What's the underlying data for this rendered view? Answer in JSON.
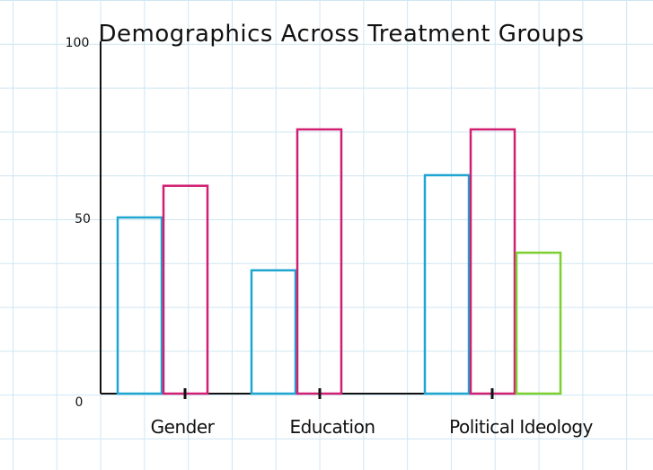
{
  "chart_data": {
    "type": "bar",
    "title": "Demographics Across Treatment Groups",
    "xlabel": "",
    "ylabel": "",
    "ylim": [
      0,
      100
    ],
    "yticks": [
      "0",
      "50",
      "100"
    ],
    "categories": [
      "Gender",
      "Education",
      "Political Ideology"
    ],
    "series": [
      {
        "color": "#1ea6d1",
        "values": [
          50,
          35,
          62
        ]
      },
      {
        "color": "#d01f72",
        "values": [
          59,
          75,
          75
        ]
      },
      {
        "color": "#7ccf2e",
        "values": [
          null,
          null,
          40
        ]
      }
    ],
    "grid": true,
    "legend": "none"
  }
}
